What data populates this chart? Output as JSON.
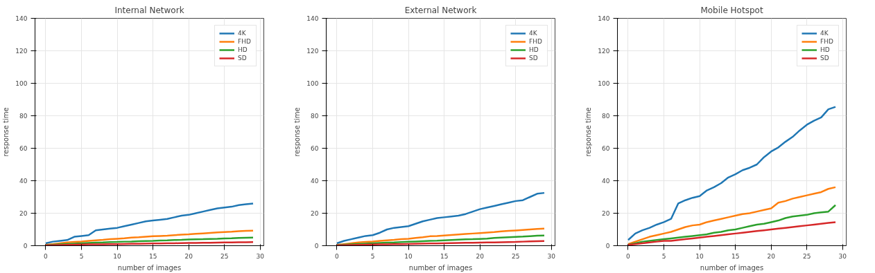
{
  "chart_data": [
    {
      "type": "line",
      "title": "Internal Network",
      "xlabel": "number of images",
      "ylabel": "response time",
      "x": [
        0,
        1,
        2,
        3,
        4,
        5,
        6,
        7,
        8,
        9,
        10,
        11,
        12,
        13,
        14,
        15,
        16,
        17,
        18,
        19,
        20,
        21,
        22,
        23,
        24,
        25,
        26,
        27,
        28,
        29
      ],
      "xlim": [
        -1.5,
        30.5
      ],
      "ylim": [
        0,
        140
      ],
      "xticks": [
        0,
        5,
        10,
        15,
        20,
        25,
        30
      ],
      "yticks": [
        0,
        20,
        40,
        60,
        80,
        100,
        120,
        140
      ],
      "grid": true,
      "legend": "top right",
      "marker": "none",
      "line_style": "solid",
      "series": [
        {
          "name": "4K",
          "color": "#1f77b4",
          "values": [
            1.5,
            2.5,
            3,
            3.5,
            5.5,
            6,
            6.5,
            9.5,
            10,
            10.5,
            11,
            12,
            13,
            14,
            15,
            15.5,
            16,
            16.5,
            17.5,
            18.5,
            19,
            20,
            21,
            22,
            23,
            23.5,
            24,
            25,
            25.5,
            26
          ]
        },
        {
          "name": "FHD",
          "color": "#ff7f0e",
          "values": [
            0.5,
            1,
            1.5,
            2,
            2.3,
            2.6,
            3,
            3.3,
            3.6,
            4,
            4.3,
            4.6,
            5,
            5.2,
            5.5,
            5.8,
            6,
            6.2,
            6.5,
            6.8,
            7,
            7.3,
            7.6,
            7.9,
            8.2,
            8.4,
            8.6,
            8.9,
            9.1,
            9.3
          ]
        },
        {
          "name": "HD",
          "color": "#2ca02c",
          "values": [
            0.3,
            0.6,
            0.9,
            1.1,
            1.3,
            1.5,
            1.7,
            1.9,
            2,
            2.2,
            2.3,
            2.5,
            2.6,
            2.8,
            2.9,
            3,
            3.2,
            3.3,
            3.5,
            3.6,
            3.8,
            3.9,
            4,
            4.2,
            4.3,
            4.5,
            4.6,
            4.8,
            4.9,
            5
          ]
        },
        {
          "name": "SD",
          "color": "#d62728",
          "values": [
            0.2,
            0.3,
            0.4,
            0.5,
            0.6,
            0.7,
            0.8,
            0.8,
            0.9,
            1,
            1,
            1.1,
            1.2,
            1.2,
            1.3,
            1.4,
            1.4,
            1.5,
            1.5,
            1.6,
            1.7,
            1.7,
            1.8,
            1.8,
            1.9,
            2,
            2,
            2.1,
            2.1,
            2.2
          ]
        }
      ]
    },
    {
      "type": "line",
      "title": "External Network",
      "xlabel": "number of images",
      "ylabel": "response time",
      "x": [
        0,
        1,
        2,
        3,
        4,
        5,
        6,
        7,
        8,
        9,
        10,
        11,
        12,
        13,
        14,
        15,
        16,
        17,
        18,
        19,
        20,
        21,
        22,
        23,
        24,
        25,
        26,
        27,
        28,
        29
      ],
      "xlim": [
        -1.5,
        30.5
      ],
      "ylim": [
        0,
        140
      ],
      "xticks": [
        0,
        5,
        10,
        15,
        20,
        25,
        30
      ],
      "yticks": [
        0,
        20,
        40,
        60,
        80,
        100,
        120,
        140
      ],
      "grid": true,
      "legend": "top right",
      "marker": "none",
      "line_style": "solid",
      "series": [
        {
          "name": "4K",
          "color": "#1f77b4",
          "values": [
            1.5,
            3,
            4,
            5,
            6,
            6.5,
            8,
            10,
            11,
            11.5,
            12,
            13.5,
            15,
            16,
            17,
            17.5,
            18,
            18.5,
            19.5,
            21,
            22.5,
            23.5,
            24.5,
            25.5,
            26.5,
            27.5,
            28,
            30,
            32,
            32.5
          ]
        },
        {
          "name": "FHD",
          "color": "#ff7f0e",
          "values": [
            0.5,
            1,
            1.5,
            2,
            2.3,
            2.6,
            3,
            3.3,
            3.6,
            4,
            4.3,
            4.8,
            5.2,
            5.8,
            6,
            6.3,
            6.6,
            6.9,
            7.2,
            7.5,
            7.8,
            8.1,
            8.4,
            8.8,
            9.1,
            9.4,
            9.7,
            10,
            10.3,
            10.5
          ]
        },
        {
          "name": "HD",
          "color": "#2ca02c",
          "values": [
            0.3,
            0.6,
            0.9,
            1.1,
            1.3,
            1.5,
            1.7,
            1.9,
            2,
            2.2,
            2.4,
            2.6,
            2.8,
            3,
            3.1,
            3.3,
            3.5,
            3.7,
            3.9,
            4,
            4.2,
            4.4,
            4.8,
            5,
            5.2,
            5.4,
            5.6,
            5.9,
            6.2,
            6.3
          ]
        },
        {
          "name": "SD",
          "color": "#d62728",
          "values": [
            0.2,
            0.3,
            0.4,
            0.5,
            0.6,
            0.7,
            0.8,
            0.9,
            1,
            1,
            1.1,
            1.2,
            1.3,
            1.4,
            1.4,
            1.5,
            1.6,
            1.7,
            1.8,
            1.8,
            1.9,
            2,
            2,
            2.1,
            2.2,
            2.3,
            2.5,
            2.7,
            2.8,
            2.9
          ]
        }
      ]
    },
    {
      "type": "line",
      "title": "Mobile Hotspot",
      "xlabel": "number of images",
      "ylabel": "response time",
      "x": [
        0,
        1,
        2,
        3,
        4,
        5,
        6,
        7,
        8,
        9,
        10,
        11,
        12,
        13,
        14,
        15,
        16,
        17,
        18,
        19,
        20,
        21,
        22,
        23,
        24,
        25,
        26,
        27,
        28,
        29
      ],
      "xlim": [
        -1.5,
        30.5
      ],
      "ylim": [
        0,
        140
      ],
      "xticks": [
        0,
        5,
        10,
        15,
        20,
        25,
        30
      ],
      "yticks": [
        0,
        20,
        40,
        60,
        80,
        100,
        120,
        140
      ],
      "grid": true,
      "legend": "top right",
      "marker": "none",
      "line_style": "solid",
      "series": [
        {
          "name": "4K",
          "color": "#1f77b4",
          "values": [
            3.5,
            7.5,
            9.5,
            11,
            13,
            14.5,
            16.5,
            26,
            28,
            29.5,
            30.5,
            34,
            36,
            38.5,
            42,
            44,
            46.5,
            48,
            50,
            54.5,
            58,
            60.5,
            64,
            67,
            71,
            74.5,
            77,
            79,
            84,
            85.5
          ]
        },
        {
          "name": "FHD",
          "color": "#ff7f0e",
          "values": [
            1,
            2.5,
            4,
            5.5,
            6.5,
            7.5,
            8.5,
            10,
            11.5,
            12.5,
            13,
            14.5,
            15.5,
            16.5,
            17.5,
            18.5,
            19.5,
            20,
            21,
            22,
            23,
            26.5,
            27.5,
            29,
            30,
            31,
            32,
            33,
            35,
            36
          ]
        },
        {
          "name": "HD",
          "color": "#2ca02c",
          "values": [
            0.5,
            1.5,
            2.5,
            3,
            3.5,
            4,
            4.5,
            5,
            5.5,
            6,
            6.5,
            7,
            8,
            8.5,
            9.5,
            10,
            11,
            12,
            13,
            13.5,
            14.5,
            15.5,
            17,
            18,
            18.5,
            19,
            20,
            20.5,
            21,
            25
          ]
        },
        {
          "name": "SD",
          "color": "#d62728",
          "values": [
            0.5,
            1,
            1.5,
            2,
            2.5,
            3,
            3,
            3.5,
            4,
            4.5,
            5,
            5.5,
            6,
            6.5,
            7,
            7.5,
            8,
            8.5,
            9,
            9.5,
            10,
            10.5,
            11,
            11.5,
            12,
            12.5,
            13,
            13.5,
            14,
            14.5
          ]
        }
      ]
    }
  ]
}
